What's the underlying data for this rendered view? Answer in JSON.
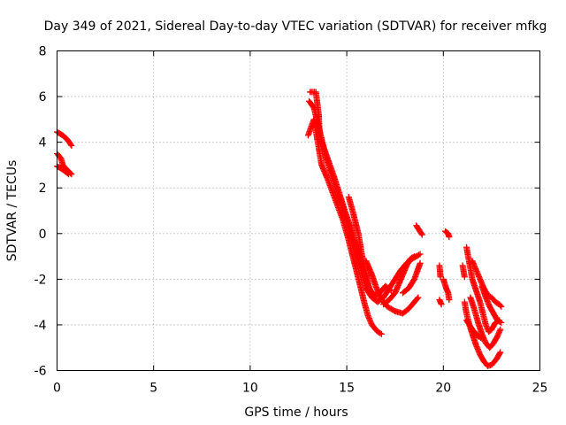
{
  "chart_data": {
    "type": "scatter",
    "title": "Day 349 of 2021, Sidereal Day-to-day VTEC variation (SDTVAR) for receiver mfkg",
    "xlabel": "GPS time / hours",
    "ylabel": "SDTVAR / TECUs",
    "xlim": [
      0,
      25
    ],
    "ylim": [
      -6,
      8
    ],
    "xticks": [
      "0",
      "5",
      "10",
      "15",
      "20",
      "25"
    ],
    "yticks": [
      "-6",
      "-4",
      "-2",
      "0",
      "2",
      "4",
      "6",
      "8"
    ],
    "grid": true,
    "marker": "plus",
    "color": "#ff0000",
    "tracks": [
      [
        [
          0.0,
          4.45
        ],
        [
          0.3,
          4.3
        ],
        [
          0.55,
          4.1
        ],
        [
          0.75,
          3.85
        ]
      ],
      [
        [
          0.0,
          3.5
        ],
        [
          0.2,
          3.3
        ],
        [
          0.3,
          3.0
        ],
        [
          0.5,
          2.8
        ],
        [
          0.75,
          2.6
        ]
      ],
      [
        [
          0.0,
          2.95
        ],
        [
          0.3,
          2.8
        ],
        [
          0.6,
          2.6
        ]
      ],
      [
        [
          13.1,
          6.2
        ],
        [
          13.4,
          6.2
        ],
        [
          13.55,
          5.2
        ],
        [
          13.6,
          4.2
        ],
        [
          13.8,
          3.8
        ],
        [
          14.0,
          3.3
        ],
        [
          14.3,
          2.6
        ],
        [
          14.6,
          1.8
        ],
        [
          14.9,
          1.0
        ],
        [
          15.2,
          0.3
        ],
        [
          15.5,
          -0.6
        ],
        [
          15.8,
          -1.5
        ],
        [
          16.1,
          -2.3
        ],
        [
          16.4,
          -2.7
        ],
        [
          16.7,
          -2.6
        ],
        [
          17.0,
          -2.3
        ],
        [
          17.3,
          -2.5
        ]
      ],
      [
        [
          13.0,
          4.3
        ],
        [
          13.3,
          5.0
        ],
        [
          13.5,
          4.0
        ],
        [
          13.7,
          3.0
        ],
        [
          14.0,
          2.4
        ],
        [
          14.4,
          1.5
        ],
        [
          14.8,
          0.6
        ],
        [
          15.1,
          -0.3
        ],
        [
          15.4,
          -1.3
        ],
        [
          15.7,
          -2.3
        ],
        [
          15.9,
          -3.0
        ],
        [
          16.1,
          -3.6
        ],
        [
          16.3,
          -4.0
        ],
        [
          16.6,
          -4.3
        ],
        [
          16.8,
          -4.4
        ]
      ],
      [
        [
          13.05,
          5.8
        ],
        [
          13.3,
          5.5
        ],
        [
          13.6,
          4.5
        ],
        [
          13.9,
          3.4
        ],
        [
          14.2,
          2.6
        ],
        [
          14.6,
          1.6
        ],
        [
          15.0,
          0.6
        ],
        [
          15.4,
          -0.5
        ],
        [
          15.7,
          -1.5
        ],
        [
          16.0,
          -2.4
        ],
        [
          16.3,
          -2.8
        ],
        [
          16.6,
          -3.0
        ],
        [
          16.9,
          -2.8
        ],
        [
          17.2,
          -2.4
        ],
        [
          17.5,
          -2.0
        ],
        [
          17.8,
          -1.6
        ],
        [
          18.1,
          -1.3
        ],
        [
          18.4,
          -1.1
        ],
        [
          18.8,
          -0.9
        ]
      ],
      [
        [
          15.1,
          1.6
        ],
        [
          15.3,
          1.0
        ],
        [
          15.6,
          0.0
        ],
        [
          15.8,
          -1.0
        ],
        [
          16.0,
          -1.8
        ],
        [
          16.2,
          -2.5
        ],
        [
          16.5,
          -2.9
        ]
      ],
      [
        [
          16.0,
          -1.2
        ],
        [
          16.3,
          -1.8
        ],
        [
          16.5,
          -2.3
        ],
        [
          16.8,
          -2.9
        ],
        [
          17.1,
          -3.2
        ],
        [
          17.5,
          -3.4
        ],
        [
          17.9,
          -3.5
        ],
        [
          18.2,
          -3.3
        ],
        [
          18.5,
          -3.0
        ],
        [
          18.7,
          -2.8
        ]
      ],
      [
        [
          16.9,
          -3.1
        ],
        [
          17.2,
          -2.9
        ],
        [
          17.5,
          -2.6
        ],
        [
          17.8,
          -2.0
        ],
        [
          18.1,
          -1.4
        ],
        [
          18.3,
          -1.1
        ],
        [
          18.5,
          -1.0
        ]
      ],
      [
        [
          17.9,
          -2.6
        ],
        [
          18.2,
          -2.4
        ],
        [
          18.5,
          -2.0
        ],
        [
          18.8,
          -1.3
        ]
      ],
      [
        [
          18.6,
          0.35
        ],
        [
          18.75,
          0.15
        ],
        [
          18.9,
          -0.05
        ]
      ],
      [
        [
          19.8,
          -1.4
        ],
        [
          19.85,
          -1.9
        ]
      ],
      [
        [
          19.8,
          -2.9
        ],
        [
          19.9,
          -3.1
        ]
      ],
      [
        [
          20.1,
          0.1
        ],
        [
          20.25,
          0.0
        ],
        [
          20.3,
          -0.15
        ]
      ],
      [
        [
          20.0,
          -2.0
        ],
        [
          20.15,
          -2.4
        ],
        [
          20.25,
          -2.6
        ],
        [
          20.3,
          -2.9
        ]
      ],
      [
        [
          21.0,
          -1.4
        ],
        [
          21.1,
          -1.9
        ]
      ],
      [
        [
          21.1,
          -3.0
        ],
        [
          21.2,
          -3.5
        ],
        [
          21.35,
          -4.0
        ],
        [
          21.5,
          -4.4
        ],
        [
          21.7,
          -4.9
        ],
        [
          21.9,
          -5.3
        ],
        [
          22.1,
          -5.6
        ],
        [
          22.3,
          -5.8
        ],
        [
          22.5,
          -5.75
        ],
        [
          22.75,
          -5.5
        ],
        [
          22.95,
          -5.2
        ]
      ],
      [
        [
          21.2,
          -3.8
        ],
        [
          21.5,
          -4.2
        ],
        [
          21.8,
          -4.5
        ],
        [
          22.0,
          -4.6
        ]
      ],
      [
        [
          21.4,
          -2.8
        ],
        [
          21.6,
          -3.3
        ],
        [
          21.8,
          -3.9
        ],
        [
          22.0,
          -4.4
        ],
        [
          22.2,
          -4.8
        ],
        [
          22.4,
          -5.0
        ],
        [
          22.6,
          -4.8
        ],
        [
          22.8,
          -4.5
        ],
        [
          22.95,
          -4.2
        ]
      ],
      [
        [
          21.2,
          -0.6
        ],
        [
          21.35,
          -1.3
        ],
        [
          21.5,
          -2.0
        ],
        [
          21.7,
          -2.5
        ],
        [
          21.9,
          -3.0
        ],
        [
          22.05,
          -3.5
        ],
        [
          22.2,
          -4.0
        ],
        [
          22.35,
          -4.3
        ],
        [
          22.5,
          -4.2
        ],
        [
          22.7,
          -3.9
        ],
        [
          22.9,
          -3.8
        ]
      ],
      [
        [
          21.5,
          -1.2
        ],
        [
          21.7,
          -1.6
        ],
        [
          21.9,
          -2.0
        ],
        [
          22.1,
          -2.4
        ],
        [
          22.3,
          -2.7
        ],
        [
          22.5,
          -2.8
        ],
        [
          22.7,
          -3.0
        ],
        [
          22.9,
          -3.1
        ],
        [
          23.0,
          -3.2
        ]
      ],
      [
        [
          22.0,
          -2.3
        ],
        [
          22.2,
          -2.8
        ],
        [
          22.4,
          -3.2
        ],
        [
          22.6,
          -3.5
        ],
        [
          22.8,
          -3.8
        ],
        [
          23.0,
          -3.9
        ]
      ]
    ]
  }
}
